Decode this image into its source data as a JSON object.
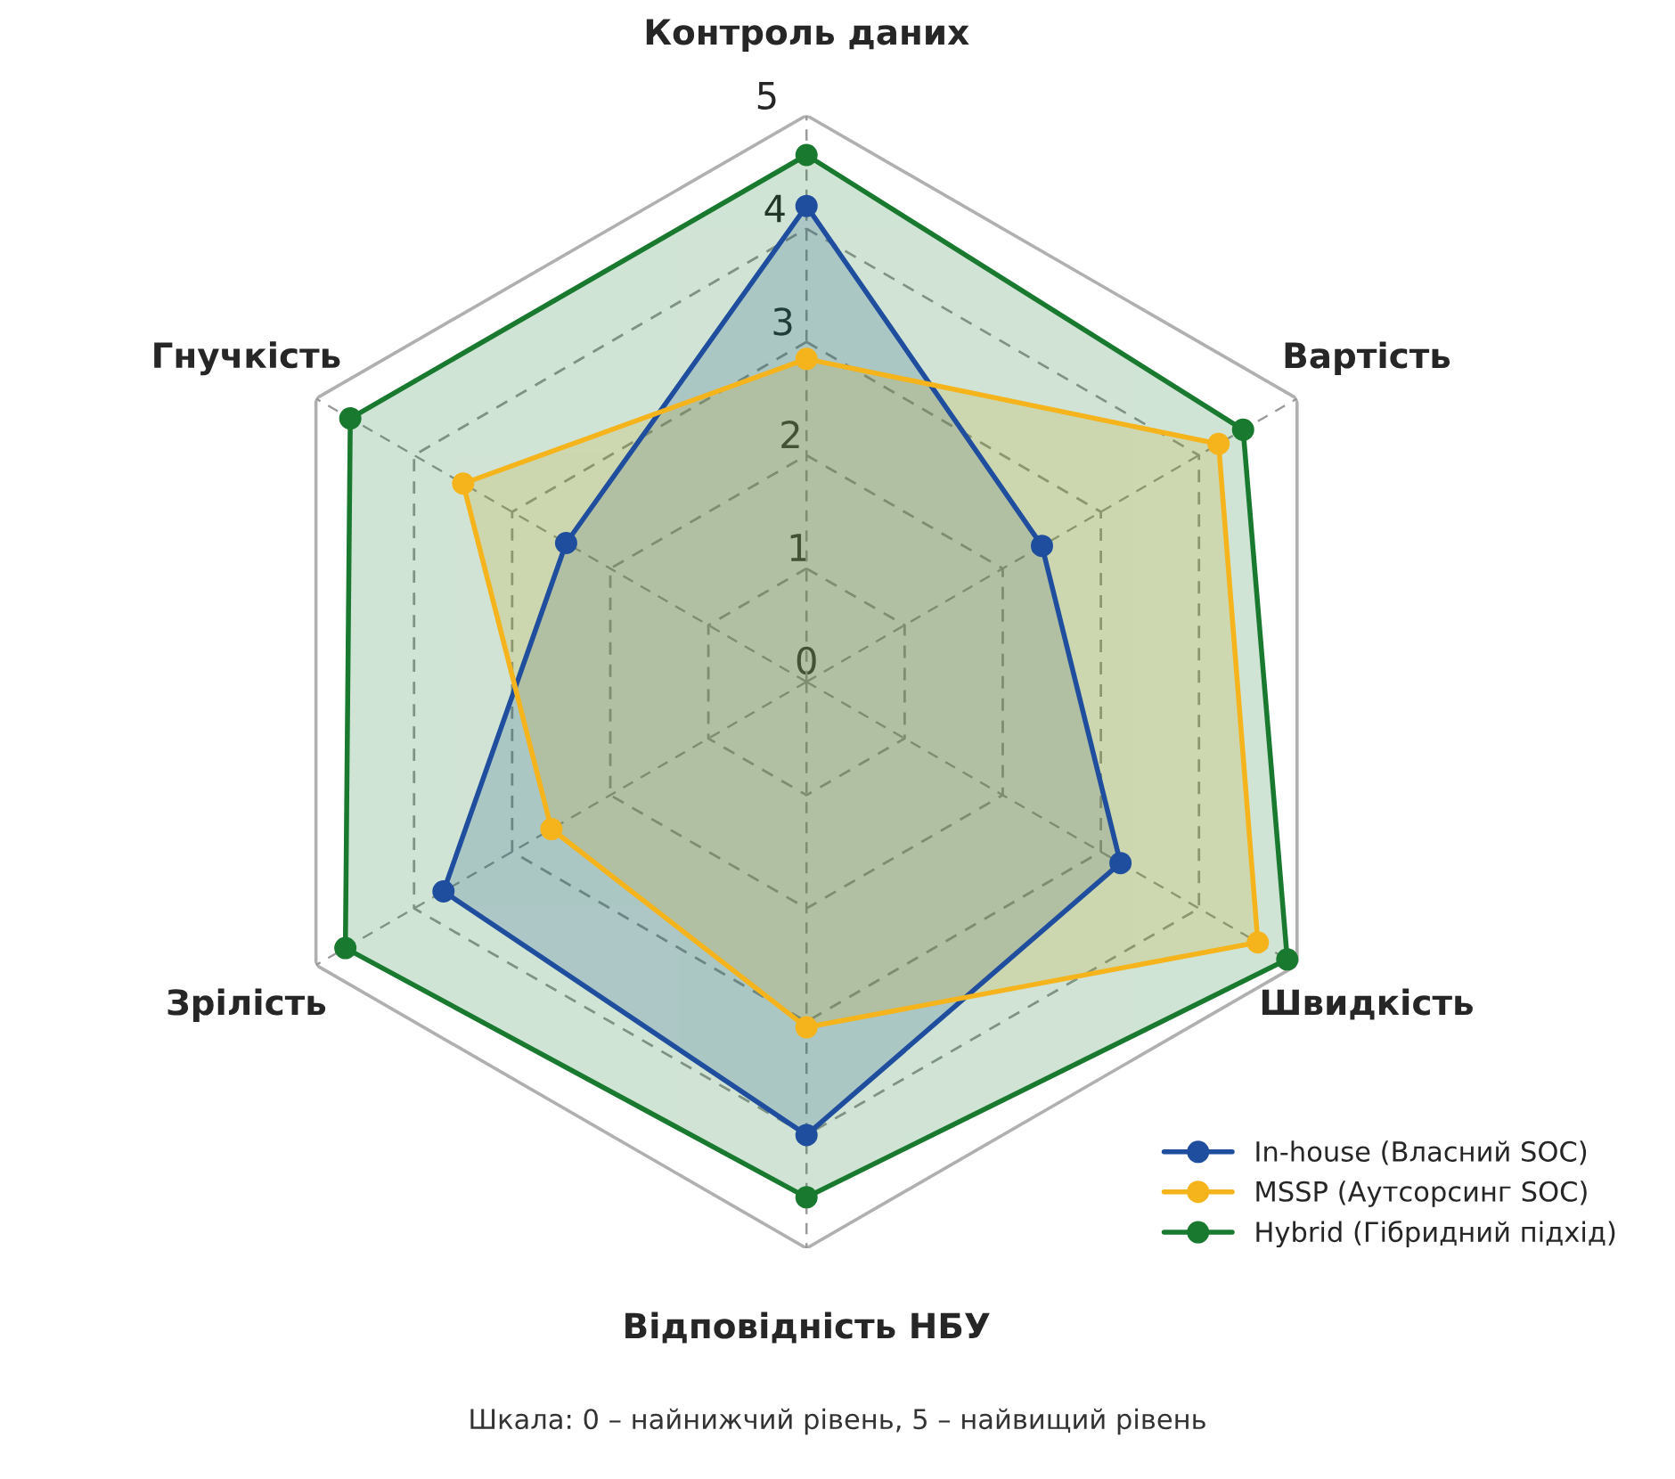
{
  "chart_data": {
    "type": "radar",
    "categories": [
      "Контроль даних",
      "Вартість",
      "Швидкість",
      "Відповідність НБУ",
      "Зрілість",
      "Гнучкість"
    ],
    "series": [
      {
        "name": "In-house (Власний SOC)",
        "color": "#1f4e9e",
        "values": [
          4.2,
          2.4,
          3.2,
          4.0,
          3.7,
          2.45
        ]
      },
      {
        "name": "MSSP (Аутсорсинг SOC)",
        "color": "#f5b31c",
        "values": [
          2.85,
          4.2,
          4.6,
          3.05,
          2.6,
          3.5
        ]
      },
      {
        "name": "Hybrid (Гібридний підхід)",
        "color": "#18792f",
        "values": [
          4.65,
          4.45,
          4.9,
          4.55,
          4.7,
          4.65
        ]
      }
    ],
    "ylim": [
      0,
      5
    ],
    "yticks": [
      0,
      1,
      2,
      3,
      4,
      5
    ],
    "grid": true,
    "legend": "bottom right",
    "marker": "circle",
    "line_style": "solid",
    "annotations": [
      "Шкала: 0 – найнижчий рівень, 5 – найвищий рівень"
    ]
  }
}
